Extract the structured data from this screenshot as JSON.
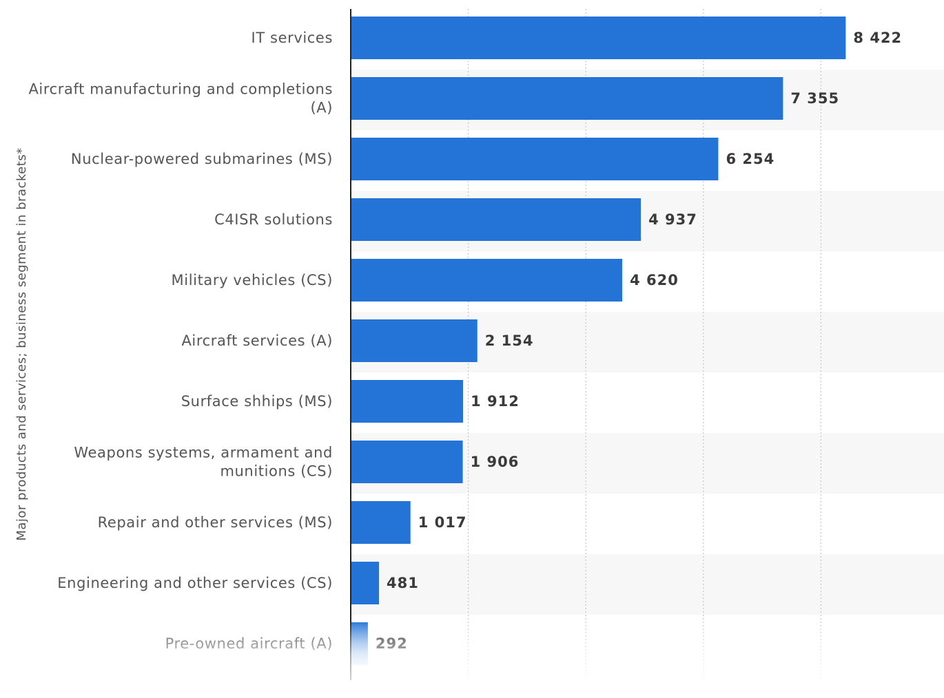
{
  "colors": {
    "bar": "#2474d8",
    "band": "#f7f7f7",
    "grid": "#c8c8c8",
    "axis": "#222222"
  },
  "chart_data": {
    "type": "bar",
    "orientation": "horizontal",
    "title": "",
    "xlabel": "",
    "ylabel": "Major products and services; business segment in brackets*",
    "categories": [
      "IT services",
      "Aircraft manufacturing and completions (A)",
      "Nuclear-powered submarines (MS)",
      "C4ISR solutions",
      "Military vehicles (CS)",
      "Aircraft services (A)",
      "Surface shhips (MS)",
      "Weapons systems, armament and munitions (CS)",
      "Repair and other services (MS)",
      "Engineering and other services (CS)",
      "Pre-owned aircraft (A)"
    ],
    "category_lines": [
      [
        "IT services"
      ],
      [
        "Aircraft manufacturing and completions",
        "(A)"
      ],
      [
        "Nuclear-powered submarines (MS)"
      ],
      [
        "C4ISR solutions"
      ],
      [
        "Military vehicles (CS)"
      ],
      [
        "Aircraft services (A)"
      ],
      [
        "Surface shhips (MS)"
      ],
      [
        "Weapons systems, armament and",
        "munitions (CS)"
      ],
      [
        "Repair and other services (MS)"
      ],
      [
        "Engineering and other services (CS)"
      ],
      [
        "Pre-owned aircraft (A)"
      ]
    ],
    "values": [
      8422,
      7355,
      6254,
      4937,
      4620,
      2154,
      1912,
      1906,
      1017,
      481,
      292
    ],
    "value_labels": [
      "8 422",
      "7 355",
      "6 254",
      "4 937",
      "4 620",
      "2 154",
      "1 912",
      "1 906",
      "1 017",
      "481",
      "292"
    ],
    "xlim": [
      0,
      10000
    ],
    "xticks": [
      0,
      2000,
      4000,
      6000,
      8000
    ],
    "grid": true,
    "legend": "none"
  }
}
